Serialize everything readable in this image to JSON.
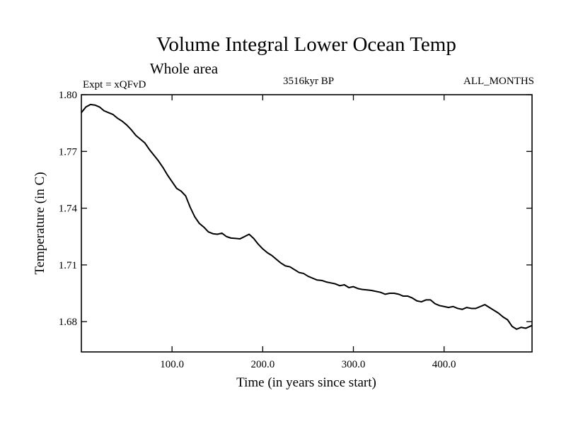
{
  "chart_data": {
    "type": "line",
    "title": "Volume Integral Lower Ocean Temp",
    "subtitle": "Whole area",
    "left_label": "Expt = xQFvD",
    "center_label": "3516kyr BP",
    "right_label": "ALL_MONTHS",
    "xlabel": "Time (in years since start)",
    "ylabel": "Temperature (in C)",
    "xlim": [
      0,
      497
    ],
    "ylim": [
      1.664,
      1.8
    ],
    "xticks": [
      {
        "value": 100,
        "label": "100.0"
      },
      {
        "value": 200,
        "label": "200.0"
      },
      {
        "value": 300,
        "label": "300.0"
      },
      {
        "value": 400,
        "label": "400.0"
      }
    ],
    "yticks": [
      {
        "value": 1.8,
        "label": "1.80"
      },
      {
        "value": 1.77,
        "label": "1.77"
      },
      {
        "value": 1.74,
        "label": "1.74"
      },
      {
        "value": 1.71,
        "label": "1.71"
      },
      {
        "value": 1.68,
        "label": "1.68"
      }
    ],
    "grid": false,
    "series": [
      {
        "name": "Volume Integral Lower Ocean Temp",
        "x": [
          0,
          5,
          10,
          15,
          20,
          25,
          30,
          35,
          40,
          45,
          50,
          55,
          60,
          65,
          70,
          75,
          80,
          85,
          90,
          95,
          100,
          105,
          110,
          115,
          120,
          125,
          130,
          135,
          140,
          145,
          150,
          155,
          160,
          165,
          170,
          175,
          180,
          185,
          190,
          195,
          200,
          205,
          210,
          215,
          220,
          225,
          230,
          235,
          240,
          245,
          250,
          255,
          260,
          265,
          270,
          275,
          280,
          285,
          290,
          295,
          300,
          305,
          310,
          315,
          320,
          325,
          330,
          335,
          340,
          345,
          350,
          355,
          360,
          365,
          370,
          375,
          380,
          385,
          390,
          395,
          400,
          405,
          410,
          415,
          420,
          425,
          430,
          435,
          440,
          445,
          450,
          455,
          460,
          465,
          470,
          475,
          480,
          485,
          490,
          497
        ],
        "values": [
          1.7905,
          1.7935,
          1.7948,
          1.7945,
          1.7935,
          1.7915,
          1.7905,
          1.7895,
          1.7875,
          1.786,
          1.784,
          1.7815,
          1.7785,
          1.7765,
          1.7745,
          1.771,
          1.768,
          1.765,
          1.7615,
          1.7575,
          1.754,
          1.7505,
          1.749,
          1.7465,
          1.7405,
          1.7355,
          1.732,
          1.73,
          1.7275,
          1.7265,
          1.7262,
          1.7268,
          1.725,
          1.7242,
          1.724,
          1.7238,
          1.725,
          1.7262,
          1.724,
          1.721,
          1.7185,
          1.7165,
          1.715,
          1.713,
          1.711,
          1.7095,
          1.709,
          1.7075,
          1.706,
          1.7055,
          1.704,
          1.703,
          1.702,
          1.7018,
          1.701,
          1.7005,
          1.7,
          1.699,
          1.6995,
          1.698,
          1.6985,
          1.6975,
          1.697,
          1.6968,
          1.6965,
          1.696,
          1.6955,
          1.6945,
          1.695,
          1.695,
          1.6945,
          1.6935,
          1.6935,
          1.6925,
          1.691,
          1.6905,
          1.6915,
          1.6915,
          1.6895,
          1.6885,
          1.688,
          1.6875,
          1.688,
          1.687,
          1.6865,
          1.6875,
          1.687,
          1.687,
          1.688,
          1.689,
          1.6875,
          1.686,
          1.6845,
          1.6825,
          1.681,
          1.6775,
          1.676,
          1.677,
          1.6765,
          1.678
        ]
      }
    ]
  }
}
